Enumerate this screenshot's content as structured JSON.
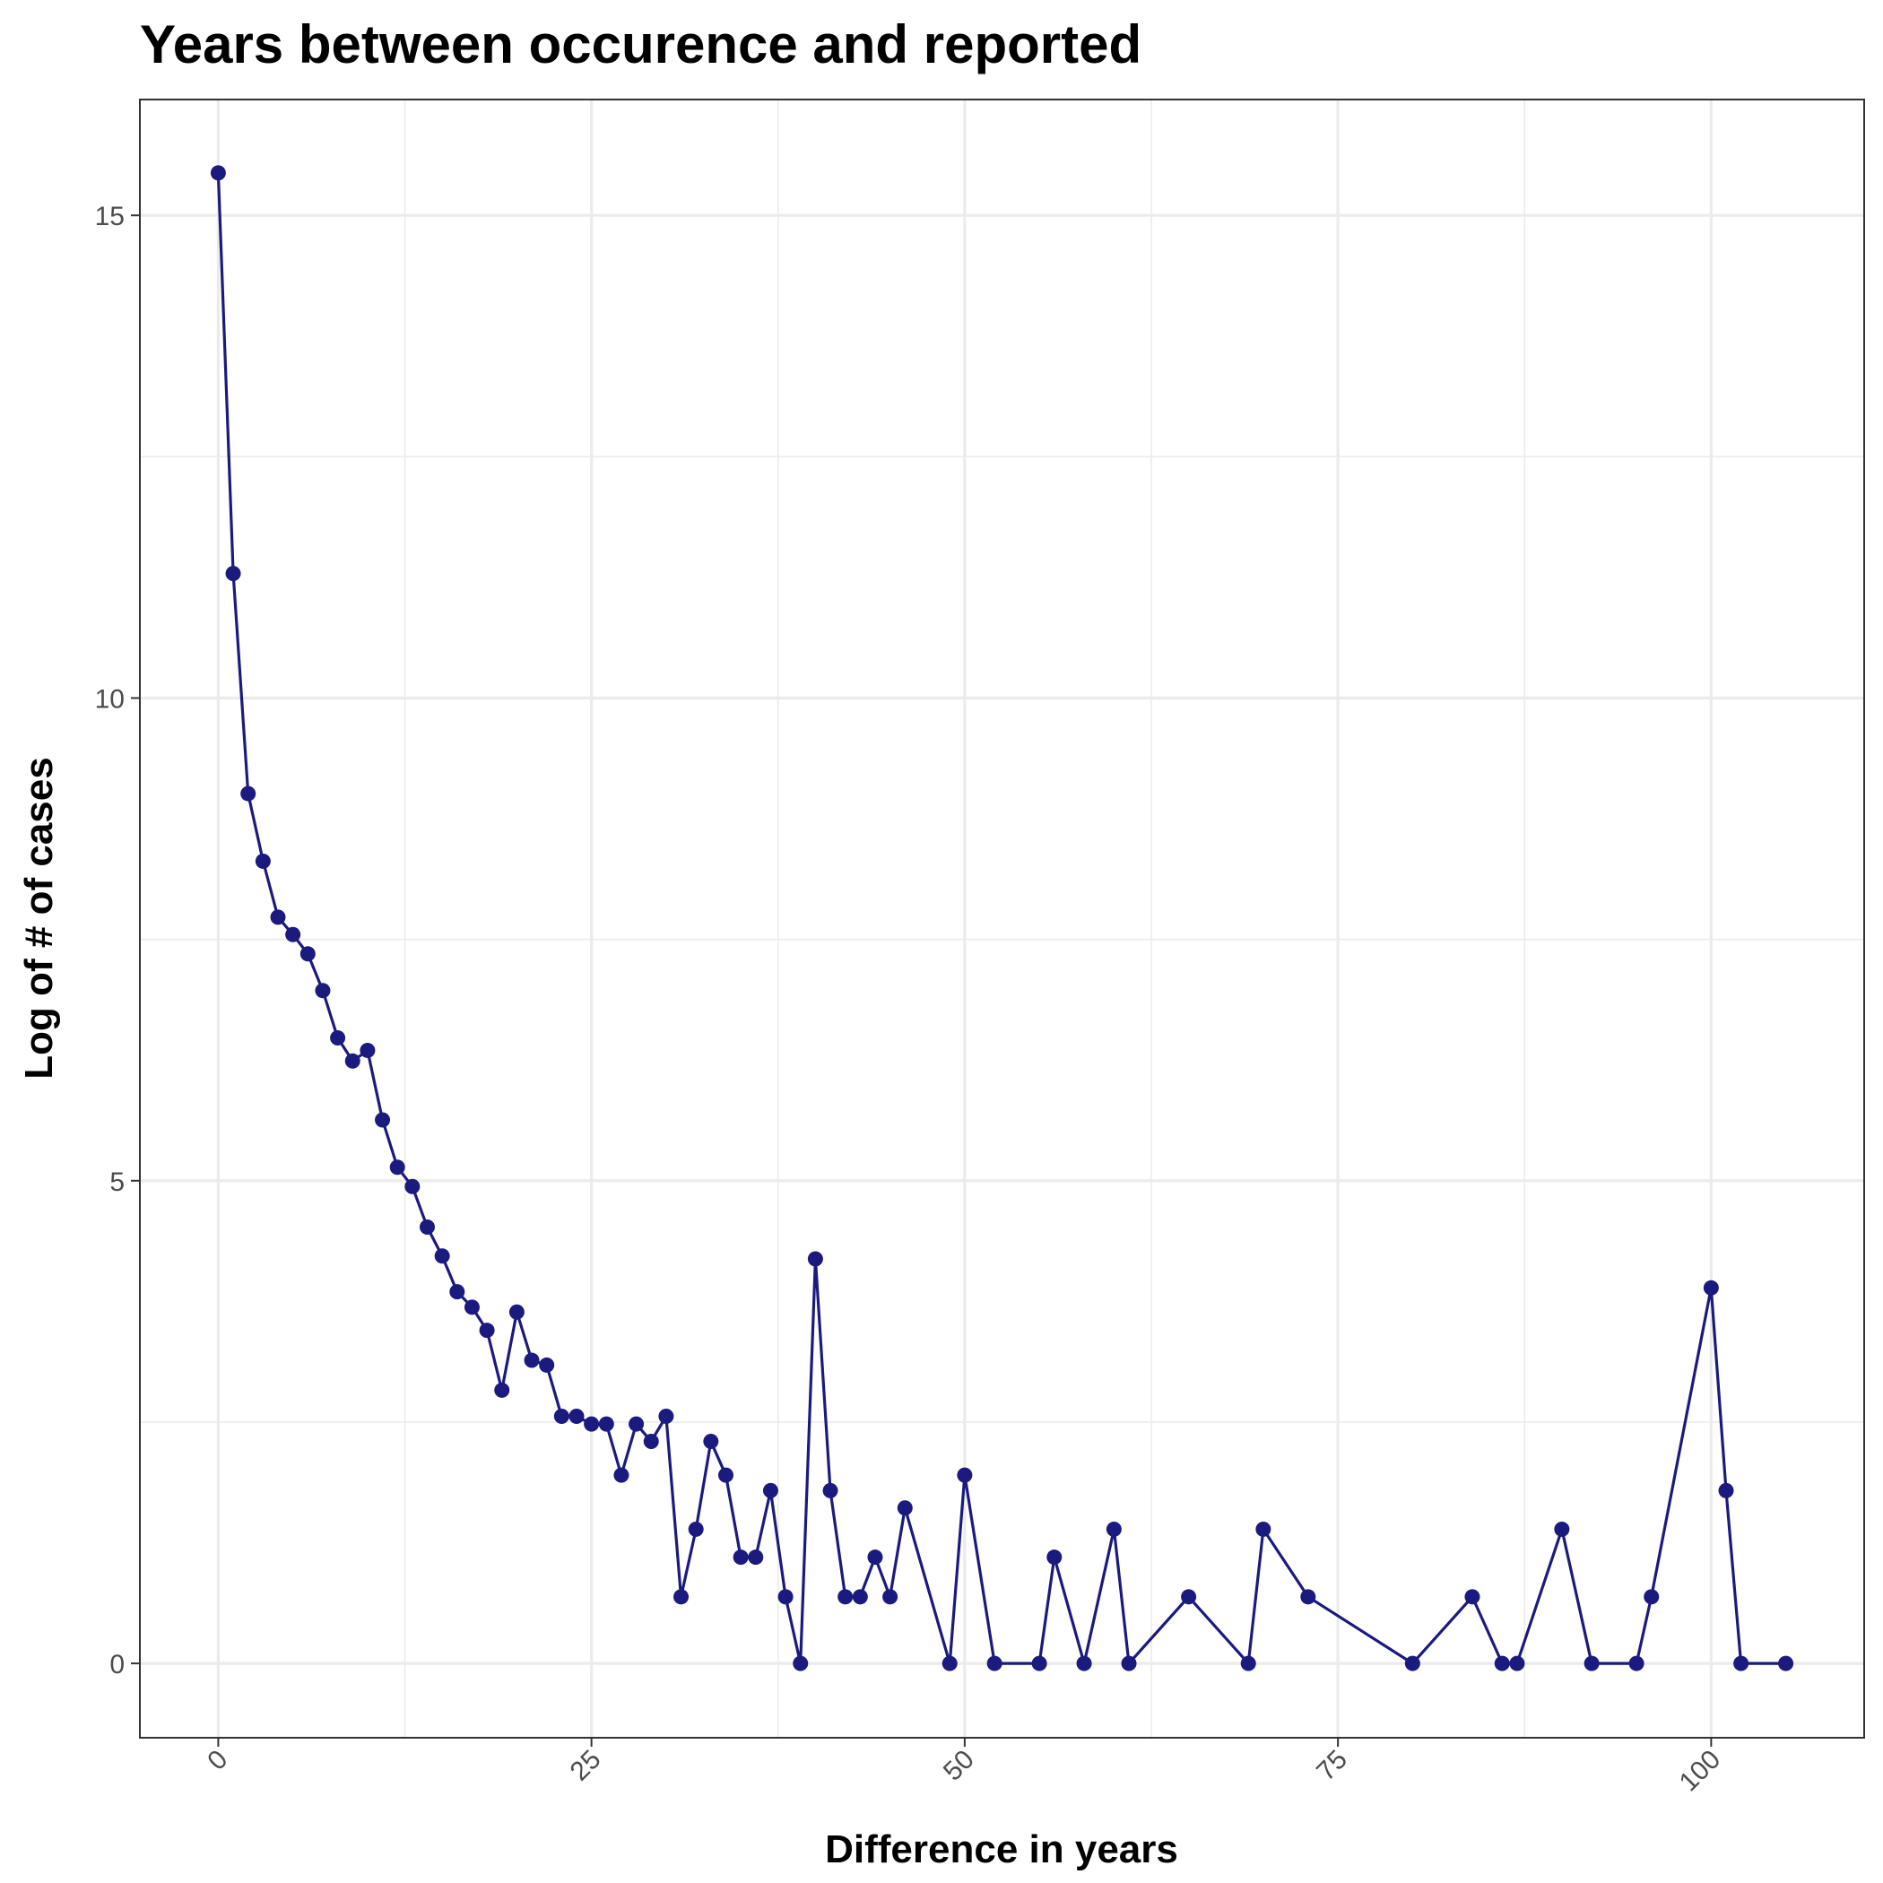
{
  "chart_data": {
    "type": "line",
    "title": "Years between occurence and reported",
    "xlabel": "Difference in years",
    "ylabel": "Log of # of cases",
    "xlim": [
      -5.25,
      110.25
    ],
    "ylim": [
      -0.77,
      16.2
    ],
    "x_ticks": [
      0,
      25,
      50,
      75,
      100
    ],
    "x_tick_labels": [
      "0",
      "25",
      "50",
      "75",
      "100"
    ],
    "y_ticks": [
      0,
      5,
      10,
      15
    ],
    "y_tick_labels": [
      "0",
      "5",
      "10",
      "15"
    ],
    "grid": true,
    "legend": "none",
    "series": [
      {
        "color": "#1a1a7f",
        "x": [
          0,
          1,
          2,
          3,
          4,
          5,
          6,
          7,
          8,
          9,
          10,
          11,
          12,
          13,
          14,
          15,
          16,
          17,
          18,
          19,
          20,
          21,
          22,
          23,
          24,
          25,
          26,
          27,
          28,
          29,
          30,
          31,
          32,
          33,
          34,
          35,
          36,
          37,
          38,
          39,
          40,
          41,
          42,
          43,
          44,
          45,
          46,
          49,
          50,
          52,
          55,
          56,
          58,
          60,
          61,
          65,
          69,
          70,
          73,
          80,
          84,
          86,
          87,
          90,
          92,
          95,
          96,
          100,
          101,
          102,
          105
        ],
        "y": [
          15.44,
          11.29,
          9.01,
          8.31,
          7.73,
          7.55,
          7.35,
          6.97,
          6.48,
          6.24,
          6.35,
          5.63,
          5.14,
          4.94,
          4.52,
          4.22,
          3.85,
          3.69,
          3.45,
          2.83,
          3.64,
          3.14,
          3.09,
          2.56,
          2.56,
          2.48,
          2.48,
          1.95,
          2.48,
          2.3,
          2.56,
          0.69,
          1.39,
          2.3,
          1.95,
          1.1,
          1.1,
          1.79,
          0.69,
          0,
          4.19,
          1.79,
          0.69,
          0.69,
          1.1,
          0.69,
          1.61,
          0,
          1.95,
          0,
          0,
          1.1,
          0,
          1.39,
          0,
          0.69,
          0,
          1.39,
          0.69,
          0,
          0.69,
          0,
          0,
          1.39,
          0,
          0,
          0.69,
          3.89,
          1.79,
          0,
          0
        ]
      }
    ]
  }
}
